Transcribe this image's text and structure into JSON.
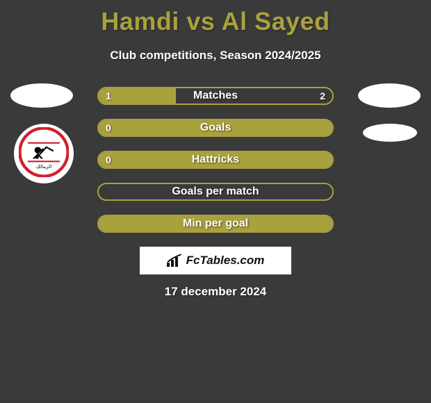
{
  "header": {
    "title": "Hamdi vs Al Sayed",
    "subtitle": "Club competitions, Season 2024/2025",
    "title_color": "#a9a13d",
    "subtitle_color": "#ffffff",
    "background_color": "#3a3a3a"
  },
  "players": {
    "left": {
      "avatar_shape": "ellipse",
      "avatar_color": "#ffffff"
    },
    "right": {
      "avatar_shape": "ellipse",
      "avatar_color": "#ffffff"
    }
  },
  "clubs": {
    "left_name": "zamalek-crest",
    "left_colors": {
      "ring": "#d21f2f",
      "inner": "#ffffff",
      "accent": "#000000"
    },
    "right_shape": "ellipse",
    "right_color": "#ffffff"
  },
  "bars": {
    "border_color": "#a9a13d",
    "fill_color": "#a9a13d",
    "text_color": "#ffffff",
    "rows": [
      {
        "label": "Matches",
        "left": "1",
        "right": "2",
        "left_pct": 33,
        "right_pct": 0
      },
      {
        "label": "Goals",
        "left": "0",
        "right": "",
        "left_pct": 100,
        "right_pct": 0
      },
      {
        "label": "Hattricks",
        "left": "0",
        "right": "",
        "left_pct": 100,
        "right_pct": 0
      },
      {
        "label": "Goals per match",
        "left": "",
        "right": "",
        "left_pct": 0,
        "right_pct": 0
      },
      {
        "label": "Min per goal",
        "left": "",
        "right": "",
        "left_pct": 0,
        "right_pct": 100
      }
    ]
  },
  "brand": {
    "text": "FcTables.com"
  },
  "date": {
    "text": "17 december 2024"
  }
}
